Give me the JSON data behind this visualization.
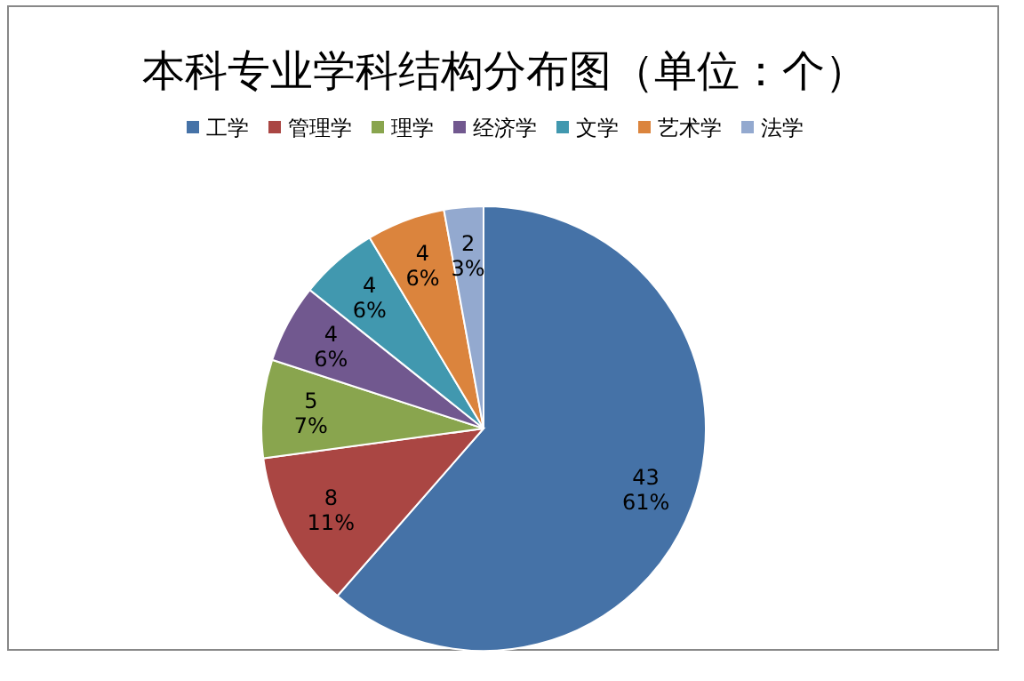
{
  "chart_data": {
    "type": "pie",
    "title": "本科专业学科结构分布图（单位：个）",
    "categories": [
      "工学",
      "管理学",
      "理学",
      "经济学",
      "文学",
      "艺术学",
      "法学"
    ],
    "values": [
      43,
      8,
      5,
      4,
      4,
      4,
      2
    ],
    "colors": [
      "#4572a7",
      "#aa4643",
      "#89a54e",
      "#71588f",
      "#4198af",
      "#db843d",
      "#93a9cf"
    ],
    "value_labels": [
      "43\n61%",
      "8\n11%",
      "5\n7%",
      "4\n6%",
      "4\n6%",
      "4\n6%",
      "2\n3%"
    ],
    "legend": "top"
  }
}
